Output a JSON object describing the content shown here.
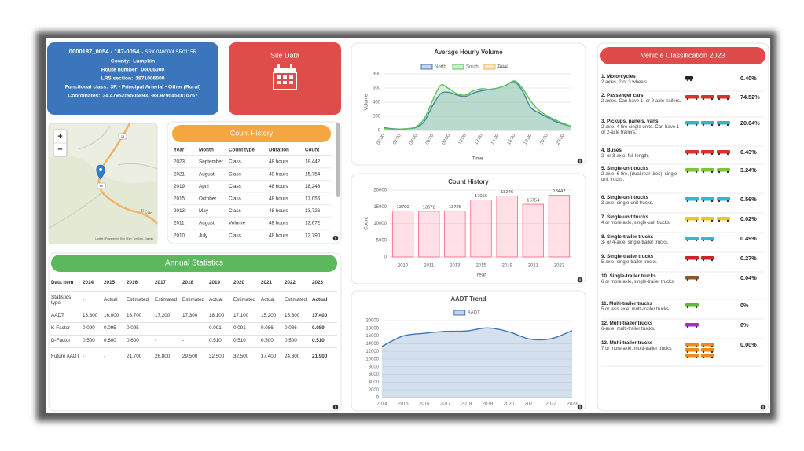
{
  "info": {
    "site_id": "0000187_0054 - 187-0054",
    "site_code": "- SRX 040000LSR0115R",
    "fields": [
      {
        "label": "County:",
        "value": "Lumpkin"
      },
      {
        "label": "Route number:",
        "value": "00006000"
      },
      {
        "label": "LRS section:",
        "value": "1871006000"
      },
      {
        "label": "Functional class:",
        "value": "3R - Principal Arterial - Other (Rural)"
      },
      {
        "label": "Coordinates:",
        "value": "34.4795259505893, -83.9795451810767"
      }
    ]
  },
  "site_data": {
    "label": "Site Data"
  },
  "map": {
    "zoom_in": "+",
    "zoom_out": "−",
    "attribution": "Leaflet | Powered by Esri | Esri, TomTom, Garmin,",
    "road_label": "S Chr",
    "shields": [
      "19",
      "60"
    ]
  },
  "count_history_table": {
    "title": "Count History",
    "columns": [
      "Year",
      "Month",
      "Count type",
      "Duration",
      "Count"
    ],
    "rows": [
      [
        "2023",
        "September",
        "Class",
        "48 hours",
        "18,442"
      ],
      [
        "2021",
        "August",
        "Class",
        "48 hours",
        "15,754"
      ],
      [
        "2019",
        "April",
        "Class",
        "48 hours",
        "18,246"
      ],
      [
        "2015",
        "October",
        "Class",
        "48 hours",
        "17,056"
      ],
      [
        "2013",
        "May",
        "Class",
        "48 hours",
        "13,726"
      ],
      [
        "2011",
        "August",
        "Volume",
        "48 hours",
        "13,672"
      ],
      [
        "2010",
        "July",
        "Class",
        "48 hours",
        "13,790"
      ]
    ]
  },
  "annual_statistics": {
    "title": "Annual Statistics",
    "columns": [
      "Data Item",
      "2014",
      "2015",
      "2016",
      "2017",
      "2018",
      "2019",
      "2020",
      "2021",
      "2022",
      "2023"
    ],
    "rows": [
      [
        "Statistics type",
        "-",
        "Actual",
        "Estimated",
        "Estimated",
        "Estimated",
        "Actual",
        "Estimated",
        "Actual",
        "Estimated",
        "Actual"
      ],
      [
        "AADT",
        "13,300",
        "16,000",
        "16,700",
        "17,200",
        "17,300",
        "18,100",
        "17,100",
        "15,200",
        "15,300",
        "17,400"
      ],
      [
        "K-Factor",
        "0.090",
        "0.095",
        "0.095",
        "-",
        "-",
        "0.091",
        "0.091",
        "0.086",
        "0.086",
        "0.089"
      ],
      [
        "D-Factor",
        "0.500",
        "0.600",
        "0.600",
        "-",
        "-",
        "0.510",
        "0.510",
        "0.500",
        "0.500",
        "0.510"
      ],
      [
        "Future AADT",
        "-",
        "-",
        "21,700",
        "26,800",
        "29,500",
        "32,500",
        "32,500",
        "37,400",
        "24,300",
        "21,900"
      ]
    ]
  },
  "chart_data": [
    {
      "type": "area",
      "title": "Average Hourly Volume",
      "x_label": "Time",
      "y_label": "Volume",
      "categories": [
        "00:00",
        null,
        "02:00",
        null,
        "04:00",
        null,
        "06:00",
        null,
        "08:00",
        null,
        "10:00",
        null,
        "12:00",
        null,
        "14:00",
        null,
        "16:00",
        null,
        "18:00",
        null,
        "20:00",
        null,
        "22:00",
        null
      ],
      "series": [
        {
          "name": "North",
          "color": "#3f74b5",
          "values": [
            40,
            25,
            20,
            25,
            45,
            130,
            350,
            520,
            540,
            500,
            480,
            530,
            560,
            580,
            600,
            640,
            690,
            560,
            330,
            250,
            190,
            130,
            90,
            60
          ]
        },
        {
          "name": "South",
          "color": "#5cc35c",
          "values": [
            30,
            20,
            20,
            25,
            55,
            170,
            420,
            640,
            590,
            520,
            500,
            560,
            590,
            580,
            600,
            640,
            700,
            600,
            420,
            290,
            210,
            150,
            100,
            60
          ]
        },
        {
          "name": "Total",
          "color": "#f0ad4e",
          "hidden": true
        }
      ],
      "ylim": [
        0,
        800
      ],
      "yticks": [
        0,
        200,
        400,
        600,
        800
      ],
      "grid": true
    },
    {
      "type": "bar",
      "title": "Count History",
      "x_label": "Year",
      "y_label": "Count",
      "categories": [
        "2010",
        "2011",
        "2013",
        "2015",
        "2019",
        "2021",
        "2023"
      ],
      "values": [
        13790,
        13672,
        13726,
        17056,
        18246,
        15754,
        18442
      ],
      "color": "#ff6384",
      "ylim": [
        0,
        20000
      ],
      "yticks": [
        0,
        5000,
        10000,
        15000,
        20000
      ],
      "grid": true
    },
    {
      "type": "area",
      "title": "AADT Trend",
      "categories": [
        "2014",
        "2015",
        "2016",
        "2017",
        "2018",
        "2019",
        "2020",
        "2021",
        "2022",
        "2023"
      ],
      "series": [
        {
          "name": "AADT",
          "color": "#3f74b5",
          "values": [
            13300,
            16000,
            16700,
            17200,
            17300,
            18100,
            17100,
            15200,
            15300,
            17400
          ]
        }
      ],
      "ylim": [
        0,
        20000
      ],
      "yticks": [
        0,
        2000,
        4000,
        6000,
        8000,
        10000,
        12000,
        14000,
        16000,
        18000,
        20000
      ],
      "grid": true
    }
  ],
  "vehicle_classification": {
    "title": "Vehicle Classification 2023",
    "classes": [
      {
        "name": "1. Motorcycles",
        "description": "2 axles, 2 or 3 wheels.",
        "share": "0.40%"
      },
      {
        "name": "2. Passenger cars",
        "description": "2 axles. Can have 1- or 2-axle trailers.",
        "share": "74.52%"
      },
      {
        "name": "3. Pickups, panels, vans",
        "description": "2-axle, 4-tire single units. Can have 1- or 2-axle trailers.",
        "share": "20.04%"
      },
      {
        "name": "4. Buses",
        "description": "2- or 3-axle, full length.",
        "share": "0.43%"
      },
      {
        "name": "5. Single-unit trucks",
        "description": "2-axle, 6-tire, (dual rear tires), single-unit trucks.",
        "share": "3.24%"
      },
      {
        "name": "6. Single-unit trucks",
        "description": "3-axle, single-unit trucks.",
        "share": "0.56%"
      },
      {
        "name": "7. Single-unit trucks",
        "description": "4 or more axle, single-unit trucks.",
        "share": "0.02%"
      },
      {
        "name": "8. Single-trailer trucks",
        "description": "3- or 4-axle, single-trailer trucks.",
        "share": "0.49%"
      },
      {
        "name": "9. Single-trailer trucks",
        "description": "5-axle, single-trailer trucks.",
        "share": "0.27%"
      },
      {
        "name": "10. Single-trailer trucks",
        "description": "6 or more axle, single-trailer trucks.",
        "share": "0.04%"
      },
      {
        "name": "11. Multi-trailer trucks",
        "description": "5 or less axle, multi-trailer trucks.",
        "share": "0%"
      },
      {
        "name": "12. Multi-trailer trucks",
        "description": "6-axle, multi-trailer trucks.",
        "share": "0%"
      },
      {
        "name": "13. Multi-trailer trucks",
        "description": "7 or more axle, multi-trailer trucks.",
        "share": "0.00%"
      }
    ]
  }
}
